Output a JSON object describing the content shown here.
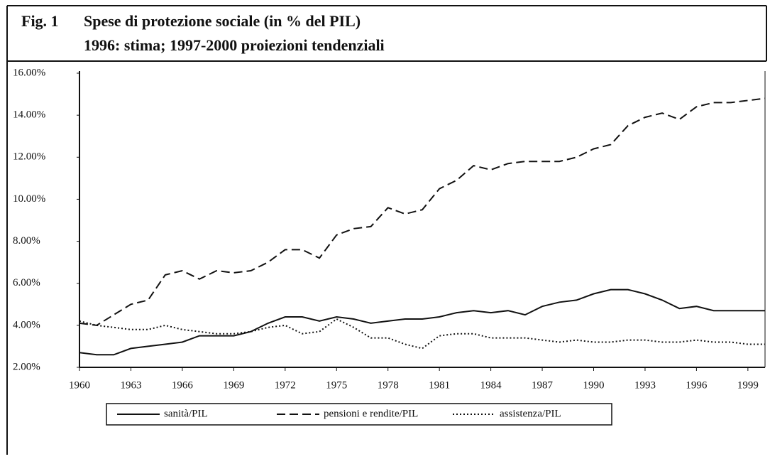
{
  "chart_data": {
    "type": "line",
    "figure_label": "Fig. 1",
    "title": "Spese di protezione sociale (in % del PIL)",
    "subtitle": "1996: stima; 1997-2000 proiezioni tendenziali",
    "x": [
      1960,
      1961,
      1962,
      1963,
      1964,
      1965,
      1966,
      1967,
      1968,
      1969,
      1970,
      1971,
      1972,
      1973,
      1974,
      1975,
      1976,
      1977,
      1978,
      1979,
      1980,
      1981,
      1982,
      1983,
      1984,
      1985,
      1986,
      1987,
      1988,
      1989,
      1990,
      1991,
      1992,
      1993,
      1994,
      1995,
      1996,
      1997,
      1998,
      1999,
      2000
    ],
    "xlim": [
      1960,
      2000
    ],
    "xticks": [
      1960,
      1963,
      1966,
      1969,
      1972,
      1975,
      1978,
      1981,
      1984,
      1987,
      1990,
      1993,
      1996,
      1999
    ],
    "ylim": [
      2,
      16
    ],
    "yticks": [
      {
        "value": 2,
        "label": "2.00%"
      },
      {
        "value": 4,
        "label": "4.00%"
      },
      {
        "value": 6,
        "label": "6.00%"
      },
      {
        "value": 8,
        "label": "8.00%"
      },
      {
        "value": 10,
        "label": "10.00%"
      },
      {
        "value": 12,
        "label": "12.00%"
      },
      {
        "value": 14,
        "label": "14.00%"
      },
      {
        "value": 16,
        "label": "16.00%"
      }
    ],
    "grid": false,
    "legend_position": "bottom",
    "series": [
      {
        "name": "sanità/PIL",
        "color": "#111111",
        "line_style": "solid",
        "values": [
          2.7,
          2.6,
          2.6,
          2.9,
          3.0,
          3.1,
          3.2,
          3.5,
          3.5,
          3.5,
          3.7,
          4.1,
          4.4,
          4.4,
          4.2,
          4.4,
          4.3,
          4.1,
          4.2,
          4.3,
          4.3,
          4.4,
          4.6,
          4.7,
          4.6,
          4.7,
          4.5,
          4.9,
          5.1,
          5.2,
          5.5,
          5.7,
          5.7,
          5.5,
          5.2,
          4.8,
          4.9,
          4.7,
          4.7,
          4.7,
          4.7
        ]
      },
      {
        "name": "pensioni e rendite/PIL",
        "color": "#111111",
        "line_style": "dashed",
        "values": [
          4.1,
          4.0,
          4.5,
          5.0,
          5.2,
          6.4,
          6.6,
          6.2,
          6.6,
          6.5,
          6.6,
          7.0,
          7.6,
          7.6,
          7.2,
          8.3,
          8.6,
          8.7,
          9.6,
          9.3,
          9.5,
          10.5,
          10.9,
          11.6,
          11.4,
          11.7,
          11.8,
          11.8,
          11.8,
          12.0,
          12.4,
          12.6,
          13.5,
          13.9,
          14.1,
          13.8,
          14.4,
          14.6,
          14.6,
          14.7,
          14.8
        ]
      },
      {
        "name": "assistenza/PIL",
        "color": "#111111",
        "line_style": "dotted",
        "values": [
          4.2,
          4.0,
          3.9,
          3.8,
          3.8,
          4.0,
          3.8,
          3.7,
          3.6,
          3.6,
          3.7,
          3.9,
          4.0,
          3.6,
          3.7,
          4.3,
          3.9,
          3.4,
          3.4,
          3.1,
          2.9,
          3.5,
          3.6,
          3.6,
          3.4,
          3.4,
          3.4,
          3.3,
          3.2,
          3.3,
          3.2,
          3.2,
          3.3,
          3.3,
          3.2,
          3.2,
          3.3,
          3.2,
          3.2,
          3.1,
          3.1
        ]
      }
    ]
  }
}
